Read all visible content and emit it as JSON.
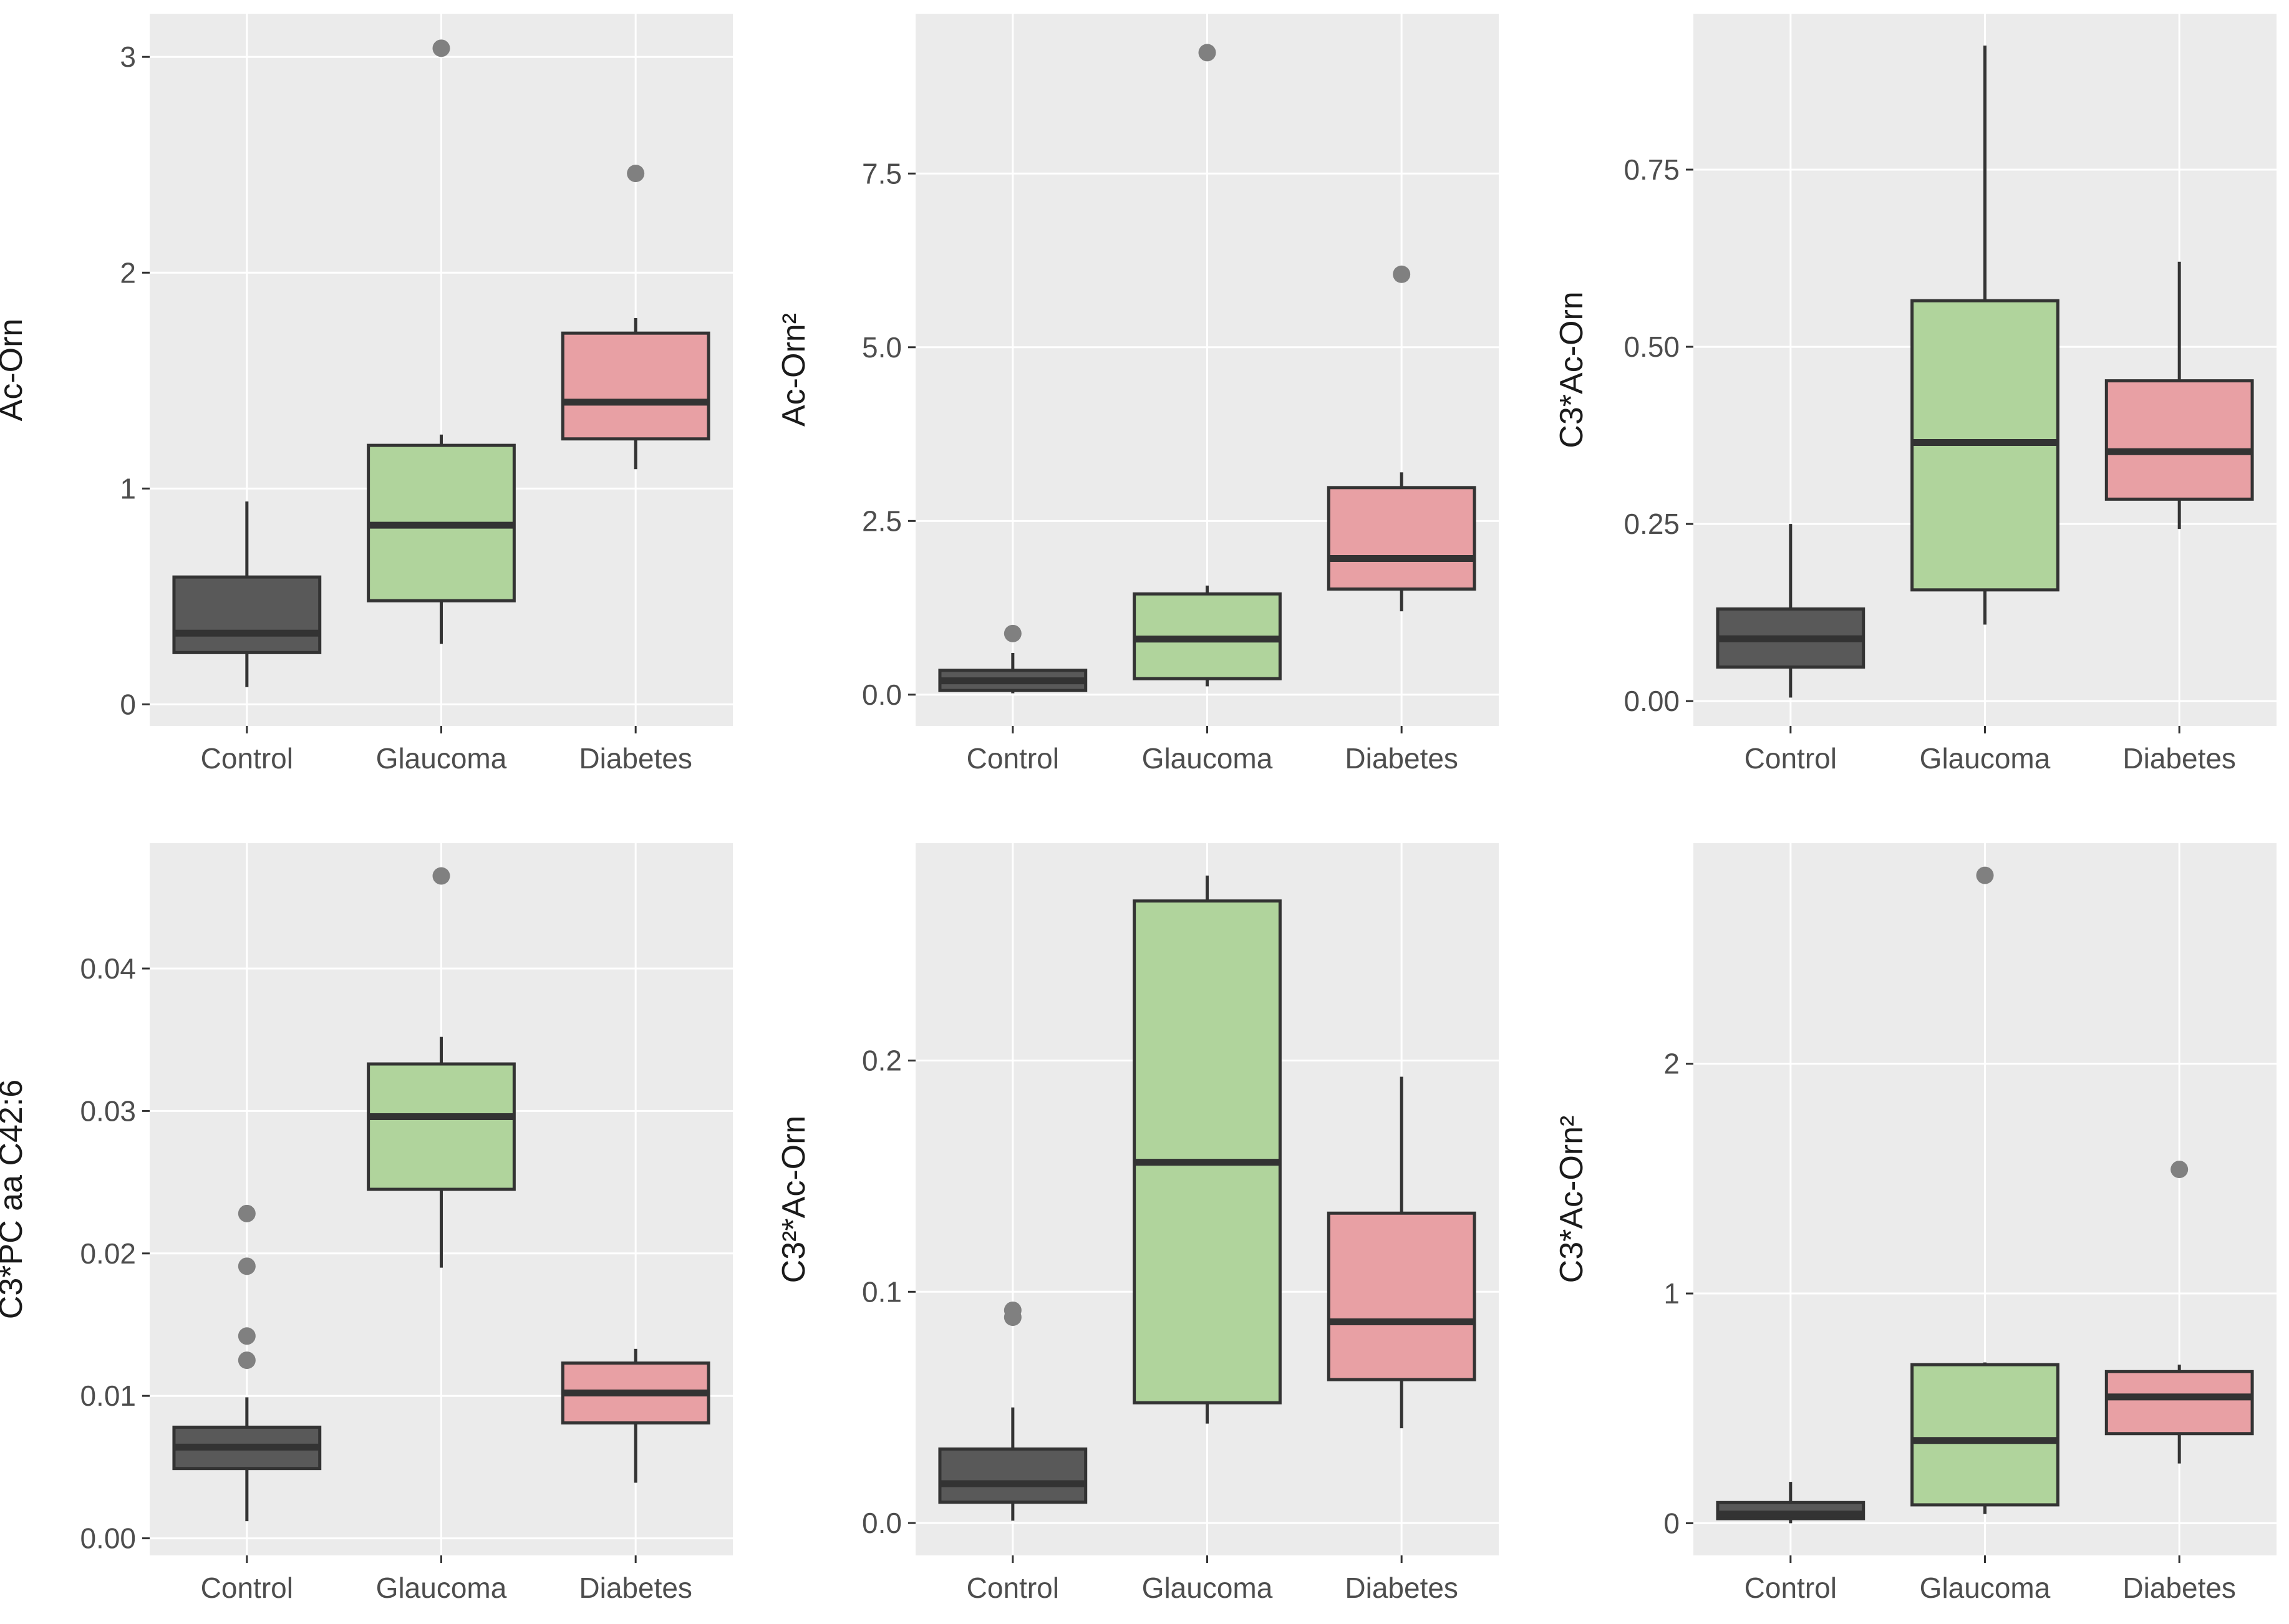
{
  "chart_data": [
    {
      "type": "boxplot",
      "ylabel": "Ac-Orn",
      "categories": [
        "Control",
        "Glaucoma",
        "Diabetes"
      ],
      "yticks": [
        "0",
        "1",
        "2",
        "3"
      ],
      "ytick_values": [
        0,
        1,
        2,
        3
      ],
      "ylim": [
        -0.1,
        3.2
      ],
      "boxes": [
        {
          "category": "Control",
          "whisker_low": 0.08,
          "q1": 0.24,
          "median": 0.33,
          "q3": 0.59,
          "whisker_high": 0.94,
          "outliers": []
        },
        {
          "category": "Glaucoma",
          "whisker_low": 0.28,
          "q1": 0.48,
          "median": 0.83,
          "q3": 1.2,
          "whisker_high": 1.25,
          "outliers": [
            3.04
          ]
        },
        {
          "category": "Diabetes",
          "whisker_low": 1.09,
          "q1": 1.23,
          "median": 1.4,
          "q3": 1.72,
          "whisker_high": 1.79,
          "outliers": [
            2.46
          ]
        }
      ]
    },
    {
      "type": "boxplot",
      "ylabel": "Ac-Orn²",
      "categories": [
        "Control",
        "Glaucoma",
        "Diabetes"
      ],
      "yticks": [
        "0.0",
        "2.5",
        "5.0",
        "7.5"
      ],
      "ytick_values": [
        0,
        2.5,
        5.0,
        7.5
      ],
      "ylim": [
        -0.45,
        9.8
      ],
      "boxes": [
        {
          "category": "Control",
          "whisker_low": 0.02,
          "q1": 0.06,
          "median": 0.2,
          "q3": 0.35,
          "whisker_high": 0.6,
          "outliers": [
            0.88
          ]
        },
        {
          "category": "Glaucoma",
          "whisker_low": 0.12,
          "q1": 0.23,
          "median": 0.8,
          "q3": 1.45,
          "whisker_high": 1.57,
          "outliers": [
            9.24
          ]
        },
        {
          "category": "Diabetes",
          "whisker_low": 1.2,
          "q1": 1.52,
          "median": 1.96,
          "q3": 2.98,
          "whisker_high": 3.2,
          "outliers": [
            6.05
          ]
        }
      ]
    },
    {
      "type": "boxplot",
      "ylabel": "C3*Ac-Orn",
      "categories": [
        "Control",
        "Glaucoma",
        "Diabetes"
      ],
      "yticks": [
        "0.00",
        "0.25",
        "0.50",
        "0.75"
      ],
      "ytick_values": [
        0,
        0.25,
        0.5,
        0.75
      ],
      "ylim": [
        -0.035,
        0.97
      ],
      "boxes": [
        {
          "category": "Control",
          "whisker_low": 0.005,
          "q1": 0.048,
          "median": 0.088,
          "q3": 0.13,
          "whisker_high": 0.25,
          "outliers": []
        },
        {
          "category": "Glaucoma",
          "whisker_low": 0.108,
          "q1": 0.157,
          "median": 0.365,
          "q3": 0.565,
          "whisker_high": 0.925,
          "outliers": []
        },
        {
          "category": "Diabetes",
          "whisker_low": 0.243,
          "q1": 0.285,
          "median": 0.352,
          "q3": 0.452,
          "whisker_high": 0.62,
          "outliers": []
        }
      ]
    },
    {
      "type": "boxplot",
      "ylabel": "C3*PC aa C42:6",
      "categories": [
        "Control",
        "Glaucoma",
        "Diabetes"
      ],
      "yticks": [
        "0.00",
        "0.01",
        "0.02",
        "0.03",
        "0.04"
      ],
      "ytick_values": [
        0,
        0.01,
        0.02,
        0.03,
        0.04
      ],
      "ylim": [
        -0.0012,
        0.0488
      ],
      "boxes": [
        {
          "category": "Control",
          "whisker_low": 0.0012,
          "q1": 0.0049,
          "median": 0.0064,
          "q3": 0.0078,
          "whisker_high": 0.0099,
          "outliers": [
            0.0125,
            0.0142,
            0.0191,
            0.0228
          ]
        },
        {
          "category": "Glaucoma",
          "whisker_low": 0.019,
          "q1": 0.0245,
          "median": 0.0296,
          "q3": 0.0333,
          "whisker_high": 0.0352,
          "outliers": [
            0.0465
          ]
        },
        {
          "category": "Diabetes",
          "whisker_low": 0.0039,
          "q1": 0.0081,
          "median": 0.0102,
          "q3": 0.0123,
          "whisker_high": 0.0133,
          "outliers": []
        }
      ]
    },
    {
      "type": "boxplot",
      "ylabel": "C3²*Ac-Orn",
      "categories": [
        "Control",
        "Glaucoma",
        "Diabetes"
      ],
      "yticks": [
        "0.0",
        "0.1",
        "0.2"
      ],
      "ytick_values": [
        0,
        0.1,
        0.2
      ],
      "ylim": [
        -0.014,
        0.294
      ],
      "boxes": [
        {
          "category": "Control",
          "whisker_low": 0.001,
          "q1": 0.009,
          "median": 0.017,
          "q3": 0.032,
          "whisker_high": 0.05,
          "outliers": [
            0.089,
            0.092
          ]
        },
        {
          "category": "Glaucoma",
          "whisker_low": 0.043,
          "q1": 0.052,
          "median": 0.156,
          "q3": 0.269,
          "whisker_high": 0.28,
          "outliers": []
        },
        {
          "category": "Diabetes",
          "whisker_low": 0.041,
          "q1": 0.062,
          "median": 0.087,
          "q3": 0.134,
          "whisker_high": 0.193,
          "outliers": []
        }
      ]
    },
    {
      "type": "boxplot",
      "ylabel": "C3*Ac-Orn²",
      "categories": [
        "Control",
        "Glaucoma",
        "Diabetes"
      ],
      "yticks": [
        "0",
        "1",
        "2"
      ],
      "ytick_values": [
        0,
        1,
        2
      ],
      "ylim": [
        -0.14,
        2.96
      ],
      "boxes": [
        {
          "category": "Control",
          "whisker_low": 0.0,
          "q1": 0.02,
          "median": 0.04,
          "q3": 0.09,
          "whisker_high": 0.18,
          "outliers": []
        },
        {
          "category": "Glaucoma",
          "whisker_low": 0.04,
          "q1": 0.08,
          "median": 0.36,
          "q3": 0.69,
          "whisker_high": 0.7,
          "outliers": [
            2.82
          ]
        },
        {
          "category": "Diabetes",
          "whisker_low": 0.26,
          "q1": 0.39,
          "median": 0.55,
          "q3": 0.66,
          "whisker_high": 0.69,
          "outliers": [
            1.54
          ]
        }
      ]
    }
  ],
  "colors": {
    "Control": "#595959",
    "Glaucoma": "#b0d49c",
    "Diabetes": "#e8a0a4",
    "panel_background": "#ebebeb",
    "box_outline": "#333333",
    "outlier": "#808080"
  }
}
